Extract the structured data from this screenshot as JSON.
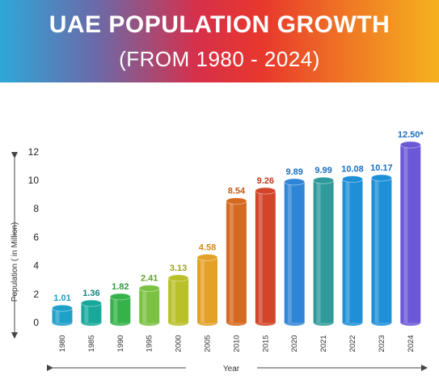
{
  "header": {
    "title": "UAE POPULATION GROWTH",
    "subtitle": "(FROM 1980 - 2024)"
  },
  "chart_data": {
    "type": "bar",
    "title": "UAE POPULATION GROWTH",
    "subtitle": "(FROM 1980 - 2024)",
    "xlabel": "Year",
    "ylabel": "Population ( in Million)",
    "ylim": [
      0,
      13
    ],
    "yticks": [
      0,
      2,
      4,
      6,
      8,
      10,
      12
    ],
    "grid": false,
    "categories": [
      "1980",
      "1985",
      "1990",
      "1995",
      "2000",
      "2005",
      "2010",
      "2015",
      "2020",
      "2021",
      "2022",
      "2023",
      "2024"
    ],
    "values": [
      1.01,
      1.36,
      1.82,
      2.41,
      3.13,
      4.58,
      8.54,
      9.26,
      9.89,
      9.99,
      10.08,
      10.17,
      12.5
    ],
    "labels": [
      "1.01",
      "1.36",
      "1.82",
      "2.41",
      "3.13",
      "4.58",
      "8.54",
      "9.26",
      "9.89",
      "9.99",
      "10.08",
      "10.17",
      "12.50*"
    ],
    "colors": [
      "#1fa0c8",
      "#17a89a",
      "#35b24a",
      "#7cc242",
      "#b9c12a",
      "#e3a127",
      "#d5691f",
      "#d2452a",
      "#2f86d6",
      "#2f9a9a",
      "#1f8fd8",
      "#1e90d8",
      "#6b58d6"
    ],
    "label_colors": [
      "#1a9bc0",
      "#14857e",
      "#2f9c3f",
      "#5ea52c",
      "#9aa318",
      "#d28a12",
      "#c85a14",
      "#c23a1f",
      "#1c6fbf",
      "#1c6fbf",
      "#1c6fbf",
      "#1c6fbf",
      "#1c6fbf"
    ]
  }
}
